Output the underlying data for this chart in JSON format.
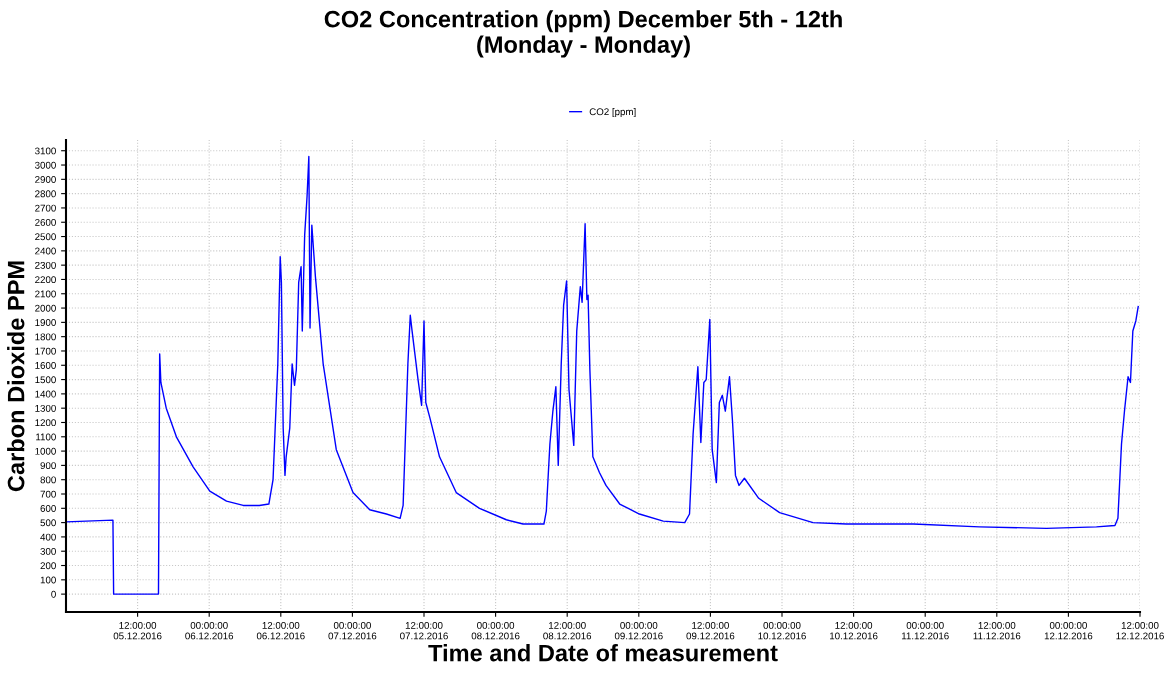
{
  "chart_data": {
    "type": "line",
    "title": "CO2 Concentration (ppm) December 5th - 12th\n(Monday - Monday)",
    "xlabel": "Time and Date of measurement",
    "ylabel": "Carbon Dioxide PPM",
    "x": [
      "2016-12-05T00:00",
      "2016-12-05T07:52",
      "2016-12-05T07:59",
      "2016-12-05T15:30",
      "2016-12-05T15:36",
      "2016-12-05T15:42",
      "2016-12-05T15:54",
      "2016-12-05T16:48",
      "2016-12-05T18:30",
      "2016-12-05T21:18",
      "2016-12-06T00:06",
      "2016-12-06T02:54",
      "2016-12-06T05:42",
      "2016-12-06T08:24",
      "2016-12-06T10:00",
      "2016-12-06T10:42",
      "2016-12-06T11:30",
      "2016-12-06T11:54",
      "2016-12-06T12:06",
      "2016-12-06T12:24",
      "2016-12-06T12:42",
      "2016-12-06T12:54",
      "2016-12-06T13:30",
      "2016-12-06T13:54",
      "2016-12-06T14:18",
      "2016-12-06T14:36",
      "2016-12-06T15:00",
      "2016-12-06T15:24",
      "2016-12-06T15:36",
      "2016-12-06T16:00",
      "2016-12-06T16:24",
      "2016-12-06T16:42",
      "2016-12-06T16:48",
      "2016-12-06T16:54",
      "2016-12-06T17:12",
      "2016-12-06T17:48",
      "2016-12-06T19:06",
      "2016-12-06T21:18",
      "2016-12-07T00:06",
      "2016-12-07T02:54",
      "2016-12-07T05:42",
      "2016-12-07T08:00",
      "2016-12-07T08:30",
      "2016-12-07T09:18",
      "2016-12-07T09:42",
      "2016-12-07T10:00",
      "2016-12-07T11:00",
      "2016-12-07T11:36",
      "2016-12-07T12:00",
      "2016-12-07T12:18",
      "2016-12-07T13:00",
      "2016-12-07T14:36",
      "2016-12-07T17:24",
      "2016-12-07T21:18",
      "2016-12-08T01:48",
      "2016-12-08T04:36",
      "2016-12-08T08:06",
      "2016-12-08T08:30",
      "2016-12-08T09:06",
      "2016-12-08T09:36",
      "2016-12-08T10:06",
      "2016-12-08T10:30",
      "2016-12-08T11:00",
      "2016-12-08T11:24",
      "2016-12-08T11:54",
      "2016-12-08T12:18",
      "2016-12-08T13:06",
      "2016-12-08T13:36",
      "2016-12-08T14:12",
      "2016-12-08T14:30",
      "2016-12-08T15:00",
      "2016-12-08T15:18",
      "2016-12-08T15:30",
      "2016-12-08T15:48",
      "2016-12-08T16:18",
      "2016-12-08T17:24",
      "2016-12-08T18:30",
      "2016-12-08T20:48",
      "2016-12-09T00:06",
      "2016-12-09T04:06",
      "2016-12-09T07:42",
      "2016-12-09T08:30",
      "2016-12-09T09:06",
      "2016-12-09T09:54",
      "2016-12-09T10:24",
      "2016-12-09T10:54",
      "2016-12-09T11:18",
      "2016-12-09T11:54",
      "2016-12-09T12:18",
      "2016-12-09T13:00",
      "2016-12-09T13:30",
      "2016-12-09T14:00",
      "2016-12-09T14:30",
      "2016-12-09T15:12",
      "2016-12-09T15:42",
      "2016-12-09T16:12",
      "2016-12-09T16:48",
      "2016-12-09T17:42",
      "2016-12-09T20:06",
      "2016-12-09T23:36",
      "2016-12-10T05:12",
      "2016-12-10T10:48",
      "2016-12-10T22:00",
      "2016-12-11T09:06",
      "2016-12-11T20:18",
      "2016-12-12T04:42",
      "2016-12-12T07:48",
      "2016-12-12T08:18",
      "2016-12-12T08:54",
      "2016-12-12T09:24",
      "2016-12-12T10:00",
      "2016-12-12T10:24",
      "2016-12-12T10:48",
      "2016-12-12T11:18",
      "2016-12-12T11:42"
    ],
    "series": [
      {
        "name": "CO2 [ppm]",
        "color": "#0000ff",
        "values": [
          505,
          517,
          0,
          0,
          850,
          1680,
          1480,
          1300,
          1100,
          890,
          720,
          650,
          620,
          620,
          630,
          800,
          1610,
          2360,
          2180,
          1160,
          830,
          960,
          1160,
          1610,
          1460,
          1570,
          2180,
          2290,
          1840,
          2510,
          2780,
          3060,
          2450,
          1860,
          2580,
          2220,
          1610,
          1010,
          710,
          590,
          560,
          530,
          620,
          1610,
          1950,
          1840,
          1500,
          1320,
          1910,
          1340,
          1230,
          960,
          710,
          600,
          520,
          490,
          490,
          580,
          1050,
          1280,
          1450,
          900,
          1610,
          2020,
          2190,
          1430,
          1040,
          1840,
          2150,
          2040,
          2590,
          2060,
          2090,
          1570,
          960,
          850,
          760,
          630,
          560,
          510,
          500,
          560,
          1120,
          1590,
          1060,
          1480,
          1500,
          1920,
          1010,
          780,
          1340,
          1390,
          1280,
          1520,
          1210,
          830,
          760,
          810,
          670,
          570,
          500,
          490,
          490,
          470,
          460,
          470,
          480,
          530,
          1050,
          1280,
          1520,
          1480,
          1840,
          1910,
          2010
        ]
      }
    ],
    "xlim": [
      "2016-12-05T00:00",
      "2016-12-12T12:00"
    ],
    "xticks": [
      {
        "value": "2016-12-05T12:00",
        "label": "12:00:00\n05.12.2016"
      },
      {
        "value": "2016-12-06T00:00",
        "label": "00:00:00\n06.12.2016"
      },
      {
        "value": "2016-12-06T12:00",
        "label": "12:00:00\n06.12.2016"
      },
      {
        "value": "2016-12-07T00:00",
        "label": "00:00:00\n07.12.2016"
      },
      {
        "value": "2016-12-07T12:00",
        "label": "12:00:00\n07.12.2016"
      },
      {
        "value": "2016-12-08T00:00",
        "label": "00:00:00\n08.12.2016"
      },
      {
        "value": "2016-12-08T12:00",
        "label": "12:00:00\n08.12.2016"
      },
      {
        "value": "2016-12-09T00:00",
        "label": "00:00:00\n09.12.2016"
      },
      {
        "value": "2016-12-09T12:00",
        "label": "12:00:00\n09.12.2016"
      },
      {
        "value": "2016-12-10T00:00",
        "label": "00:00:00\n10.12.2016"
      },
      {
        "value": "2016-12-10T12:00",
        "label": "12:00:00\n10.12.2016"
      },
      {
        "value": "2016-12-11T00:00",
        "label": "00:00:00\n11.12.2016"
      },
      {
        "value": "2016-12-11T12:00",
        "label": "12:00:00\n11.12.2016"
      },
      {
        "value": "2016-12-12T00:00",
        "label": "00:00:00\n12.12.2016"
      },
      {
        "value": "2016-12-12T12:00",
        "label": "12:00:00\n12.12.2016"
      }
    ],
    "ylim": [
      -125,
      3175
    ],
    "yticks": [
      0,
      100,
      200,
      300,
      400,
      500,
      600,
      700,
      800,
      900,
      1000,
      1100,
      1200,
      1300,
      1400,
      1500,
      1600,
      1700,
      1800,
      1900,
      2000,
      2100,
      2200,
      2300,
      2400,
      2500,
      2600,
      2700,
      2800,
      2900,
      3000,
      3100
    ],
    "grid": true,
    "legend": "top",
    "marker": "none",
    "line_style": "solid"
  }
}
